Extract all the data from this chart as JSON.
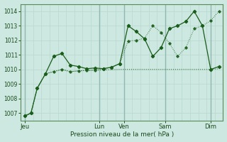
{
  "xlabel": "Pression niveau de la mer( hPa )",
  "bg_color": "#cce8e0",
  "grid_color_minor": "#b8d8d0",
  "grid_color_major": "#90b8b0",
  "line_color": "#1a5c1a",
  "ylim": [
    1006.5,
    1014.5
  ],
  "yticks": [
    1007,
    1008,
    1009,
    1010,
    1011,
    1012,
    1013,
    1014
  ],
  "xtick_labels": [
    "Jeu",
    "Lun",
    "Ven",
    "Sam",
    "Dim"
  ],
  "xtick_positions": [
    0,
    36,
    48,
    68,
    90
  ],
  "day_vlines": [
    0,
    36,
    48,
    68,
    90
  ],
  "line1_x": [
    0,
    3,
    6,
    10,
    14,
    18,
    22,
    26,
    30,
    34,
    38,
    42,
    46,
    50,
    54,
    58,
    62,
    66,
    70,
    74,
    78,
    82,
    86,
    90,
    94
  ],
  "line1_y": [
    1006.8,
    1007.0,
    1008.7,
    1009.7,
    1010.9,
    1011.1,
    1010.3,
    1010.2,
    1010.05,
    1010.1,
    1010.05,
    1010.15,
    1010.4,
    1013.0,
    1012.6,
    1012.1,
    1010.9,
    1011.5,
    1012.8,
    1013.0,
    1013.3,
    1014.0,
    1013.0,
    1010.0,
    1010.2
  ],
  "line2_x": [
    0,
    3,
    6,
    10,
    14,
    18,
    22,
    26,
    30,
    34,
    38,
    42,
    46,
    50,
    54,
    58,
    62,
    66,
    70,
    74,
    78,
    82,
    86,
    90,
    94
  ],
  "line2_y": [
    1006.8,
    1007.0,
    1008.7,
    1009.7,
    1009.85,
    1010.0,
    1009.85,
    1009.9,
    1009.93,
    1009.95,
    1009.97,
    1009.98,
    1010.0,
    1010.0,
    1010.0,
    1010.0,
    1010.0,
    1010.0,
    1010.0,
    1010.0,
    1010.0,
    1010.0,
    1010.0,
    1010.0,
    1010.05
  ],
  "line3_x": [
    0,
    3,
    6,
    10,
    14,
    18,
    22,
    26,
    30,
    34,
    38,
    42,
    46,
    50,
    54,
    58,
    62,
    66,
    70,
    74,
    78,
    82,
    86,
    90,
    94
  ],
  "line3_y": [
    1006.8,
    1007.0,
    1008.7,
    1009.7,
    1009.85,
    1010.0,
    1009.85,
    1009.9,
    1009.93,
    1009.95,
    1010.05,
    1010.15,
    1010.4,
    1011.95,
    1012.0,
    1012.15,
    1013.0,
    1012.55,
    1011.8,
    1010.9,
    1011.5,
    1012.8,
    1013.0,
    1013.35,
    1014.0
  ]
}
